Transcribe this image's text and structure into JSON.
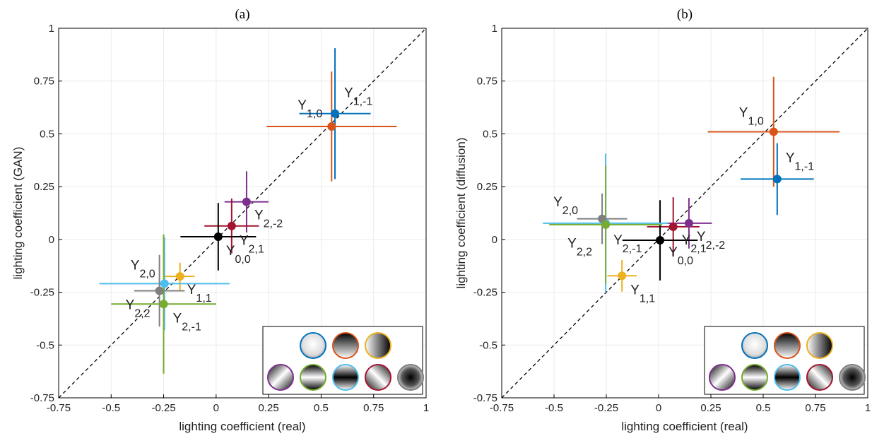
{
  "chart_data": [
    {
      "type": "scatter",
      "title": "(a)",
      "xlabel": "lighting coefficient (real)",
      "ylabel": "lighting coefficient (GAN)",
      "xlim": [
        -0.75,
        1
      ],
      "ylim": [
        -0.75,
        1
      ],
      "xticks": [
        -0.75,
        -0.5,
        -0.25,
        0,
        0.25,
        0.5,
        0.75,
        1
      ],
      "yticks": [
        -0.75,
        -0.5,
        -0.25,
        0,
        0.25,
        0.5,
        0.75,
        1
      ],
      "grid": true,
      "series": [
        {
          "name": "Y",
          "sub": "1,-1",
          "color": "#0072BD",
          "x": [
            0.566
          ],
          "values": [
            0.596
          ],
          "xerr": [
            0.17
          ],
          "yerr": [
            0.31
          ]
        },
        {
          "name": "Y",
          "sub": "1,0",
          "color": "#D95319",
          "x": [
            0.55
          ],
          "values": [
            0.535
          ],
          "xerr": [
            0.31
          ],
          "yerr": [
            0.26
          ]
        },
        {
          "name": "Y",
          "sub": "2,-2",
          "color": "#7E2F8E",
          "x": [
            0.145
          ],
          "values": [
            0.178
          ],
          "xerr": [
            0.105
          ],
          "yerr": [
            0.145
          ]
        },
        {
          "name": "Y",
          "sub": "2,1",
          "color": "#A2142F",
          "x": [
            0.074
          ],
          "values": [
            0.064
          ],
          "xerr": [
            0.13
          ],
          "yerr": [
            0.13
          ]
        },
        {
          "name": "Y",
          "sub": "0,0",
          "color": "#000000",
          "x": [
            0.01
          ],
          "values": [
            0.013
          ],
          "xerr": [
            0.18
          ],
          "yerr": [
            0.16
          ]
        },
        {
          "name": "Y",
          "sub": "1,1",
          "color": "#EDB120",
          "x": [
            -0.172
          ],
          "values": [
            -0.175
          ],
          "xerr": [
            0.07
          ],
          "yerr": [
            0.065
          ]
        },
        {
          "name": "Y",
          "sub": "2,0",
          "color": "#4DBEEE",
          "x": [
            -0.246
          ],
          "values": [
            -0.209
          ],
          "xerr": [
            0.31
          ],
          "yerr": [
            0.22
          ]
        },
        {
          "name": "Y",
          "sub": "2,2",
          "color": "#7F7F7F",
          "x": [
            -0.27
          ],
          "values": [
            -0.243
          ],
          "xerr": [
            0.12
          ],
          "yerr": [
            0.17
          ]
        },
        {
          "name": "Y",
          "sub": "2,-1",
          "color": "#77AC30",
          "x": [
            -0.25
          ],
          "values": [
            -0.306
          ],
          "xerr": [
            0.25
          ],
          "yerr": [
            0.33
          ]
        }
      ]
    },
    {
      "type": "scatter",
      "title": "(b)",
      "xlabel": "lighting coefficient (real)",
      "ylabel": "lighting coefficient (diffusion)",
      "xlim": [
        -0.75,
        1
      ],
      "ylim": [
        -0.75,
        1
      ],
      "xticks": [
        -0.75,
        -0.5,
        -0.25,
        0,
        0.25,
        0.5,
        0.75,
        1
      ],
      "yticks": [
        -0.75,
        -0.5,
        -0.25,
        0,
        0.25,
        0.5,
        0.75,
        1
      ],
      "grid": true,
      "series": [
        {
          "name": "Y",
          "sub": "1,-1",
          "color": "#0072BD",
          "x": [
            0.567
          ],
          "values": [
            0.286
          ],
          "xerr": [
            0.175
          ],
          "yerr": [
            0.17
          ]
        },
        {
          "name": "Y",
          "sub": "1,0",
          "color": "#D95319",
          "x": [
            0.55
          ],
          "values": [
            0.51
          ],
          "xerr": [
            0.315
          ],
          "yerr": [
            0.26
          ]
        },
        {
          "name": "Y",
          "sub": "2,-2",
          "color": "#7E2F8E",
          "x": [
            0.145
          ],
          "values": [
            0.077
          ],
          "xerr": [
            0.11
          ],
          "yerr": [
            0.12
          ]
        },
        {
          "name": "Y",
          "sub": "2,1",
          "color": "#A2142F",
          "x": [
            0.07
          ],
          "values": [
            0.06
          ],
          "xerr": [
            0.125
          ],
          "yerr": [
            0.14
          ]
        },
        {
          "name": "Y",
          "sub": "0,0",
          "color": "#000000",
          "x": [
            0.007
          ],
          "values": [
            -0.004
          ],
          "xerr": [
            0.18
          ],
          "yerr": [
            0.19
          ]
        },
        {
          "name": "Y",
          "sub": "1,1",
          "color": "#EDB120",
          "x": [
            -0.175
          ],
          "values": [
            -0.172
          ],
          "xerr": [
            0.07
          ],
          "yerr": [
            0.075
          ]
        },
        {
          "name": "Y",
          "sub": "2,0",
          "color": "#4DBEEE",
          "x": [
            -0.253
          ],
          "values": [
            0.077
          ],
          "xerr": [
            0.3
          ],
          "yerr": [
            0.33
          ]
        },
        {
          "name": "Y",
          "sub": "2,2",
          "color": "#7F7F7F",
          "x": [
            -0.27
          ],
          "values": [
            0.098
          ],
          "xerr": [
            0.12
          ],
          "yerr": [
            0.12
          ]
        },
        {
          "name": "Y",
          "sub": "2,-1",
          "color": "#77AC30",
          "x": [
            -0.253
          ],
          "values": [
            0.07
          ],
          "xerr": [
            0.27
          ],
          "yerr": [
            0.28
          ]
        }
      ]
    }
  ]
}
